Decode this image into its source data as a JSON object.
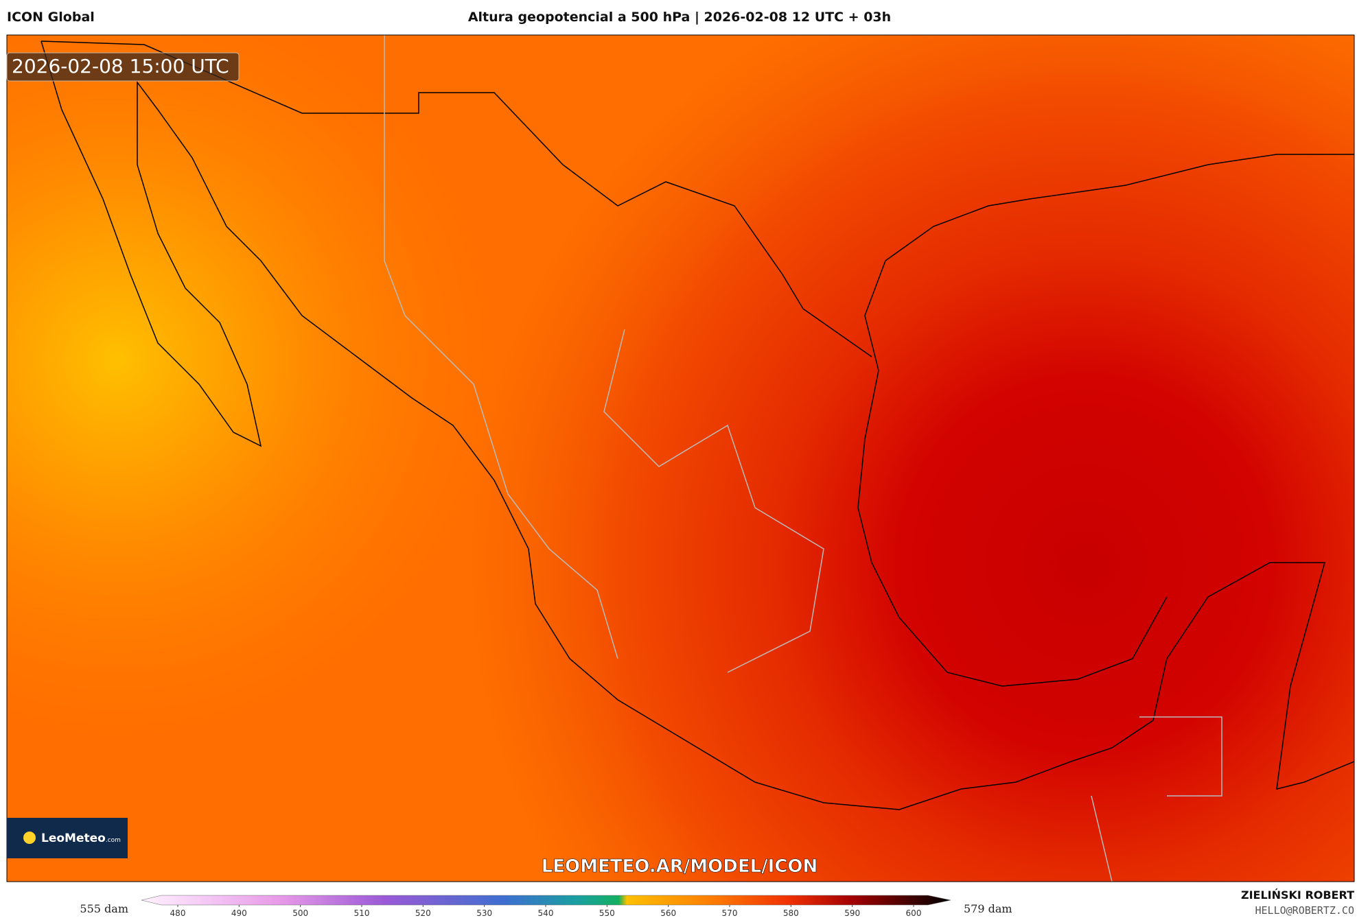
{
  "header": {
    "model": "ICON Global",
    "title": "Altura geopotencial a 500 hPa | 2026-02-08 12 UTC + 03h"
  },
  "map": {
    "timestamp": "2026-02-08 15:00 UTC",
    "logo": {
      "name": "LeoMeteo",
      "suffix": ".com"
    },
    "url": "LEOMETEO.AR/MODEL/ICON"
  },
  "colorbar": {
    "min_label": "555 dam",
    "max_label": "579 dam",
    "ticks": [
      480,
      490,
      500,
      510,
      520,
      530,
      540,
      550,
      560,
      570,
      580,
      590,
      600
    ]
  },
  "author": {
    "name": "ZIELIŃSKI ROBERT",
    "email": "HELLO@ROBERTZ.CO"
  }
}
